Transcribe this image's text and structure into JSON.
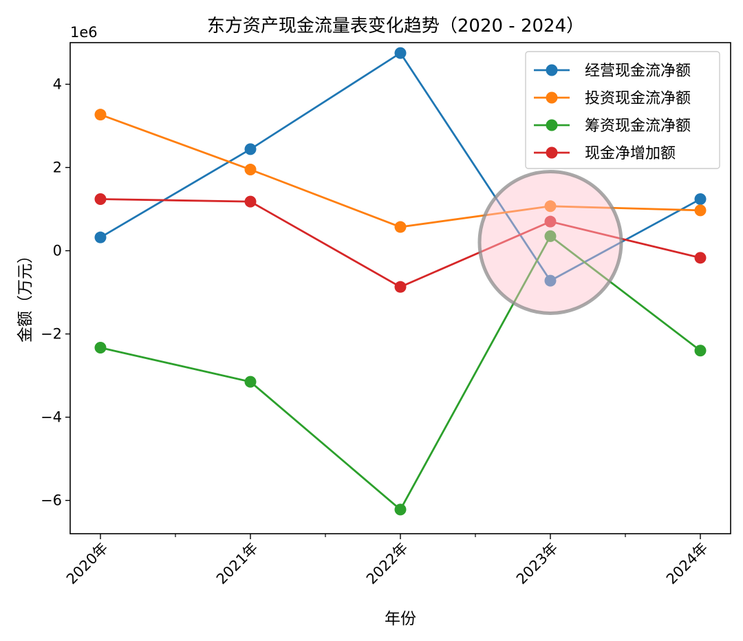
{
  "chart_data": {
    "type": "line",
    "title": "东方资产现金流量表变化趋势（2020 - 2024）",
    "xlabel": "年份",
    "ylabel": "金额（万元）",
    "y_offset_label": "1e6",
    "x": [
      "2020年",
      "2021年",
      "2022年",
      "2023年",
      "2024年"
    ],
    "ylim": [
      -6.8,
      5.0
    ],
    "y_unit_multiplier": 1000000,
    "y_ticks": [
      -6,
      -4,
      -2,
      0,
      2,
      4
    ],
    "y_tick_labels": [
      "−6",
      "−4",
      "−2",
      "0",
      "2",
      "4"
    ],
    "series": [
      {
        "name": "经营现金流净额",
        "color": "#1f77b4",
        "values": [
          0.32,
          2.44,
          4.75,
          -0.72,
          1.24
        ]
      },
      {
        "name": "投资现金流净额",
        "color": "#ff7f0e",
        "values": [
          3.27,
          1.95,
          0.57,
          1.07,
          0.97
        ]
      },
      {
        "name": "筹资现金流净额",
        "color": "#2ca02c",
        "values": [
          -2.33,
          -3.15,
          -6.22,
          0.35,
          -2.4
        ]
      },
      {
        "name": "现金净增加额",
        "color": "#d62728",
        "values": [
          1.24,
          1.18,
          -0.87,
          0.7,
          -0.17
        ]
      }
    ],
    "legend_position": "top-right",
    "grid": false,
    "annotation": {
      "type": "circle",
      "x_category": "2023年",
      "y": 0.2,
      "fill": "#ffc0cb",
      "stroke": "#8c8c8c"
    }
  }
}
